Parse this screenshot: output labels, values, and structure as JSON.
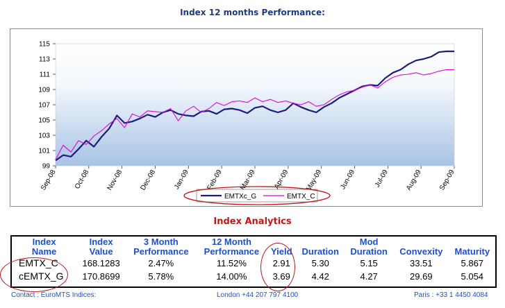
{
  "title": "Index 12 months Performance:",
  "chart_data": {
    "type": "line",
    "title": "Index 12 months Performance:",
    "ylim": [
      99,
      115
    ],
    "yticks": [
      99,
      101,
      103,
      105,
      107,
      109,
      111,
      113,
      115
    ],
    "xticks": [
      "Sep-08",
      "Oct-08",
      "Nov-08",
      "Dec-08",
      "Jan-09",
      "Feb-09",
      "Mar-09",
      "Apr-09",
      "May-09",
      "Jun-09",
      "Jul-09",
      "Aug-09",
      "Sep-09"
    ],
    "x": [
      "Sep-08",
      "Oct-08",
      "Nov-08",
      "Dec-08",
      "Jan-09",
      "Feb-09",
      "Mar-09",
      "Apr-09",
      "May-09",
      "Jun-09",
      "Jul-09",
      "Aug-09",
      "Sep-09"
    ],
    "grid": false,
    "legend": "bottom",
    "series": [
      {
        "name": "EMTXc_G",
        "color": "#1c1c7a",
        "values": [
          99.7,
          101.8,
          104.5,
          105.4,
          106.2,
          105.9,
          106.5,
          106.4,
          106.3,
          107.8,
          109.7,
          112.4,
          114.0
        ],
        "dense": [
          99.7,
          100.4,
          100.2,
          101.2,
          102.3,
          101.5,
          102.8,
          103.9,
          105.6,
          104.6,
          104.8,
          105.2,
          105.7,
          105.4,
          106.0,
          106.3,
          105.8,
          105.6,
          105.5,
          106.1,
          106.2,
          105.8,
          106.4,
          106.5,
          106.3,
          105.9,
          106.6,
          106.8,
          106.3,
          106.0,
          106.3,
          107.2,
          106.7,
          106.3,
          106.0,
          106.7,
          107.2,
          107.9,
          108.4,
          108.9,
          109.4,
          109.6,
          109.5,
          110.5,
          111.2,
          111.6,
          112.3,
          112.8,
          113.0,
          113.3,
          113.9,
          114.0,
          114.0
        ]
      },
      {
        "name": "EMTX_C",
        "color": "#e000e0",
        "values": [
          99.8,
          102.1,
          104.4,
          105.6,
          106.2,
          106.7,
          107.6,
          107.7,
          107.4,
          108.6,
          109.6,
          111.0,
          111.6
        ],
        "dense": [
          99.8,
          101.7,
          100.8,
          102.3,
          101.8,
          102.9,
          103.6,
          104.5,
          105.2,
          104.0,
          105.8,
          105.4,
          106.2,
          106.1,
          106.0,
          106.5,
          104.9,
          106.2,
          106.8,
          106.0,
          106.5,
          107.3,
          106.9,
          107.4,
          107.5,
          107.3,
          107.9,
          107.4,
          107.7,
          107.3,
          107.5,
          107.2,
          107.0,
          107.4,
          106.8,
          107.0,
          107.7,
          108.3,
          108.7,
          108.9,
          109.3,
          109.6,
          109.2,
          110.0,
          110.6,
          110.9,
          111.0,
          111.2,
          110.9,
          111.1,
          111.4,
          111.6,
          111.6
        ]
      }
    ]
  },
  "legend": [
    {
      "name": "EMTXc_G",
      "color": "#1c1c7a"
    },
    {
      "name": "EMTX_C",
      "color": "#e000e0"
    }
  ],
  "analytics": {
    "title": "Index Analytics",
    "headers": [
      [
        "Index",
        "Name"
      ],
      [
        "Index",
        "Value"
      ],
      [
        "3 Month",
        "Performance"
      ],
      [
        "12 Month",
        "Performance"
      ],
      [
        "",
        "Yield"
      ],
      [
        "",
        "Duration"
      ],
      [
        "Mod",
        "Duration"
      ],
      [
        "",
        "Convexity"
      ],
      [
        "",
        "Maturity"
      ]
    ],
    "rows": [
      [
        "EMTX_C",
        "168.1283",
        "2.47%",
        "11.52%",
        "2.91",
        "5.30",
        "5.15",
        "33.51",
        "5.867"
      ],
      [
        "cEMTX_G",
        "170.8699",
        "5.78%",
        "14.00%",
        "3.69",
        "4.42",
        "4.27",
        "29.69",
        "5.054"
      ]
    ]
  },
  "contact": {
    "label": "Contact : EuroMTS Indices:",
    "london": "London +44 207 797 4100",
    "paris": "Paris : +33 1 4450 4084"
  },
  "colors": {
    "title": "#1f3b80",
    "accent": "#c01818",
    "header": "#1f4fc8"
  }
}
